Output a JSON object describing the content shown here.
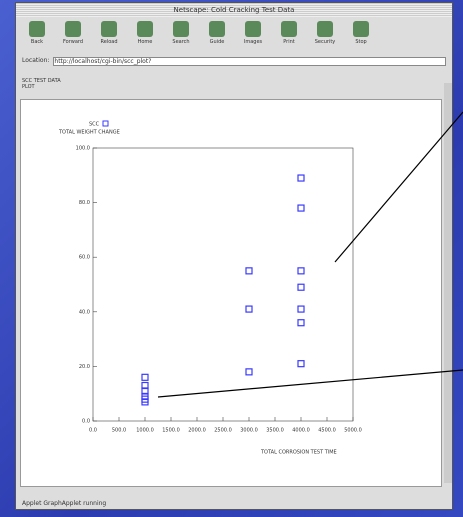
{
  "window": {
    "title": "Netscape: Cold Cracking Test Data"
  },
  "toolbar": [
    "Back",
    "Forward",
    "Reload",
    "Home",
    "Search",
    "Guide",
    "Images",
    "Print",
    "Security",
    "Stop"
  ],
  "location": {
    "label": "Location:",
    "url": "http://localhost/cgi-bin/scc_plot?"
  },
  "tabs": [
    "SCC TEST DATA",
    "PLOT"
  ],
  "status": "Applet GraphApplet running",
  "chart_data": {
    "type": "scatter",
    "marker_label": "SCC",
    "ylabel": "TOTAL WEIGHT CHANGE",
    "xlabel": "TOTAL CORROSION TEST TIME",
    "xlim": [
      0,
      5000
    ],
    "ylim": [
      0,
      100
    ],
    "xticks": [
      {
        "value": 0,
        "label": "0.0"
      },
      {
        "value": 500,
        "label": "500.0"
      },
      {
        "value": 1000,
        "label": "1000.0"
      },
      {
        "value": 1500,
        "label": "1500.0"
      },
      {
        "value": 2000,
        "label": "2000.0"
      },
      {
        "value": 2500,
        "label": "2500.0"
      },
      {
        "value": 3000,
        "label": "3000.0"
      },
      {
        "value": 3500,
        "label": "3500.0"
      },
      {
        "value": 4000,
        "label": "4000.0"
      },
      {
        "value": 4500,
        "label": "4500.0"
      },
      {
        "value": 5000,
        "label": "5000.0"
      }
    ],
    "yticks": [
      {
        "value": 0,
        "label": "0.0"
      },
      {
        "value": 20,
        "label": "20.0"
      },
      {
        "value": 40,
        "label": "40.0"
      },
      {
        "value": 60,
        "label": "60.0"
      },
      {
        "value": 80,
        "label": "80.0"
      },
      {
        "value": 100,
        "label": "100.0"
      }
    ],
    "x": [
      1000,
      1000,
      1000,
      1000,
      1000,
      1000,
      3000,
      3000,
      3000,
      4000,
      4000,
      4000,
      4000,
      4000,
      4000,
      4000
    ],
    "values": [
      16,
      13,
      11,
      9,
      8,
      7,
      18,
      41,
      55,
      89,
      78,
      55,
      49,
      41,
      36,
      21
    ],
    "color": "#3a3aff"
  }
}
